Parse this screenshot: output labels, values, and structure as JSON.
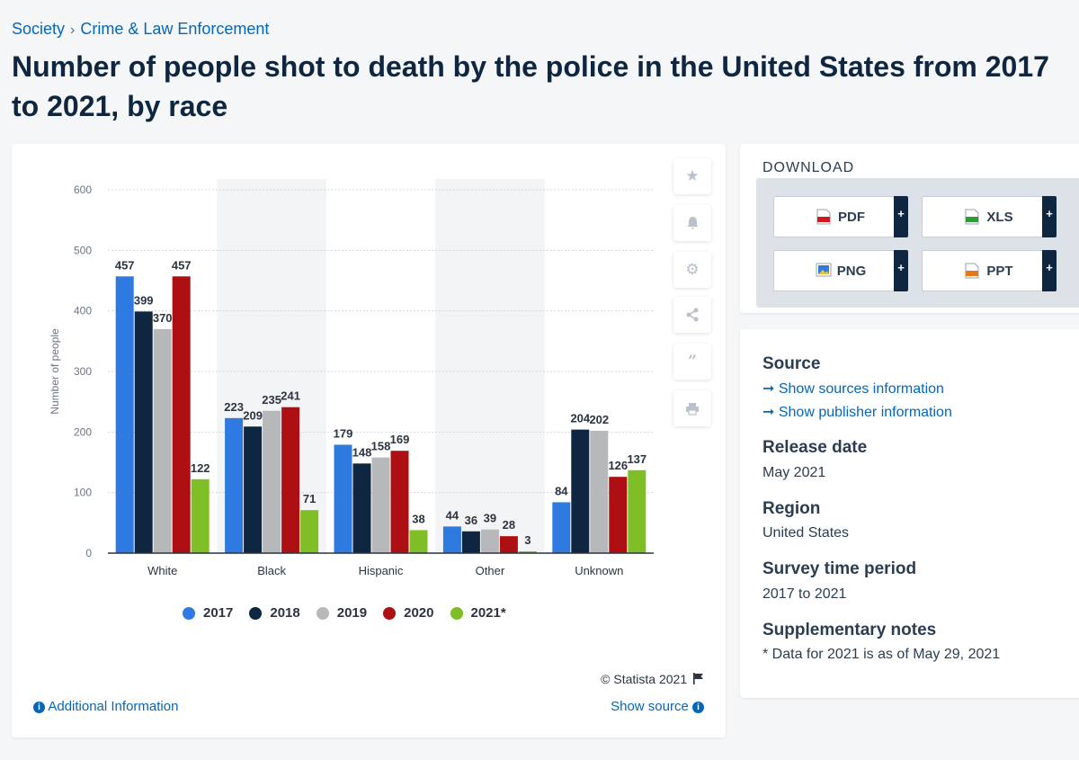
{
  "breadcrumb": {
    "parent": "Society",
    "separator": "›",
    "current": "Crime & Law Enforcement"
  },
  "title": "Number of people shot to death by the police in the United States from 2017 to 2021, by race",
  "chart_data": {
    "type": "bar",
    "title": "Number of people shot to death by the police in the United States from 2017 to 2021, by race",
    "xlabel": "",
    "ylabel": "Number of people",
    "ylim": [
      0,
      600
    ],
    "yticks": [
      0,
      100,
      200,
      300,
      400,
      500,
      600
    ],
    "categories": [
      "White",
      "Black",
      "Hispanic",
      "Other",
      "Unknown"
    ],
    "series": [
      {
        "name": "2017",
        "color": "#2f7ae0",
        "values": [
          457,
          223,
          179,
          44,
          84
        ]
      },
      {
        "name": "2018",
        "color": "#0f2640",
        "values": [
          399,
          209,
          148,
          36,
          204
        ]
      },
      {
        "name": "2019",
        "color": "#b7b8b9",
        "values": [
          370,
          235,
          158,
          39,
          202
        ]
      },
      {
        "name": "2020",
        "color": "#ad0f12",
        "values": [
          457,
          241,
          169,
          28,
          126
        ]
      },
      {
        "name": "2021*",
        "color": "#7fbe26",
        "values": [
          122,
          71,
          38,
          3,
          137
        ]
      }
    ],
    "grid": true,
    "legend": "bottom"
  },
  "chart_footer": {
    "copyright": "© Statista 2021",
    "additional_info": "Additional Information",
    "show_source": "Show source"
  },
  "toolbar_icons": [
    "star-icon",
    "bell-icon",
    "gear-icon",
    "share-icon",
    "quote-icon",
    "print-icon"
  ],
  "download": {
    "title": "DOWNLOAD",
    "buttons": [
      {
        "label": "PDF",
        "color": "#d0181e"
      },
      {
        "label": "XLS",
        "color": "#2e9a3a"
      },
      {
        "label": "PNG",
        "color": "#2f7ae0"
      },
      {
        "label": "PPT",
        "color": "#e67a1a"
      }
    ],
    "plus": "+"
  },
  "info": {
    "source_label": "Source",
    "show_sources": "Show sources information",
    "show_publisher": "Show publisher information",
    "release_label": "Release date",
    "release_value": "May 2021",
    "region_label": "Region",
    "region_value": "United States",
    "period_label": "Survey time period",
    "period_value": "2017 to 2021",
    "notes_label": "Supplementary notes",
    "notes_value": "* Data for 2021 is as of May 29, 2021"
  }
}
